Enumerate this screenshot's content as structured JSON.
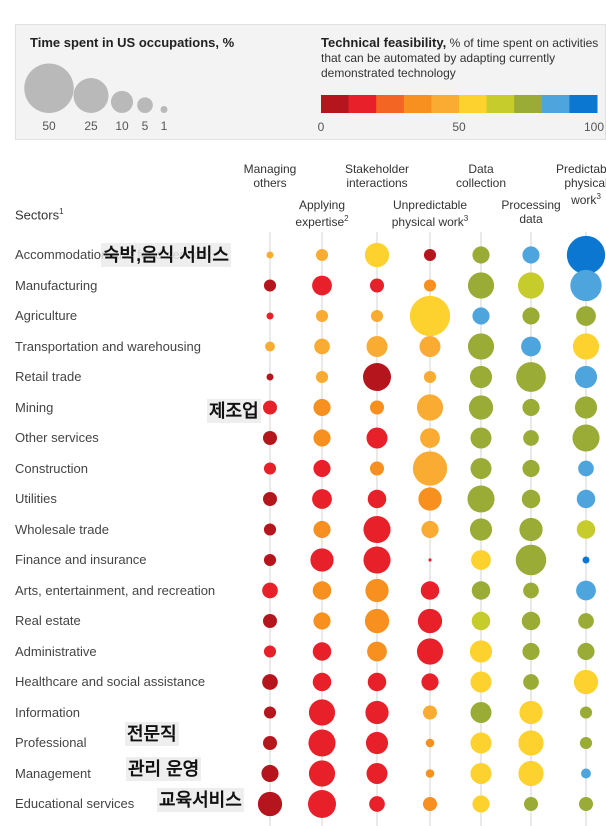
{
  "legend": {
    "size_title": "Time spent in US occupations, %",
    "size_values": [
      "50",
      "25",
      "10",
      "5",
      "1"
    ],
    "tf_title_bold": "Technical feasibility,",
    "tf_title_rest": " % of time spent on activities that can be automated by adapting currently demonstrated technology",
    "scale_labels": [
      "0",
      "50",
      "100"
    ],
    "scale_colors": [
      "#b5161e",
      "#e8202a",
      "#f26522",
      "#f7901e",
      "#f9ab32",
      "#fdd12e",
      "#c6cc2c",
      "#9aab36",
      "#4ea5dd",
      "#0b77d1"
    ]
  },
  "sectors_heading": "Sectors",
  "sectors_heading_sup": "1",
  "columns": [
    {
      "lines": [
        "Managing",
        "others"
      ],
      "sup": ""
    },
    {
      "lines": [
        "Applying",
        "expertise"
      ],
      "sup": "2"
    },
    {
      "lines": [
        "Stakeholder",
        "interactions"
      ],
      "sup": ""
    },
    {
      "lines": [
        "Unpredictable",
        "physical work"
      ],
      "sup": "3"
    },
    {
      "lines": [
        "Data",
        "collection"
      ],
      "sup": ""
    },
    {
      "lines": [
        "Processing",
        "data"
      ],
      "sup": ""
    },
    {
      "lines": [
        "Predictable",
        "physical",
        "work"
      ],
      "sup": "3"
    }
  ],
  "chart_data": {
    "type": "scatter",
    "title": "",
    "size_legend_title": "Time spent in US occupations, %",
    "color_legend_title": "Technical feasibility, % of time spent on activities that can be automated by adapting currently demonstrated technology",
    "color_scale_range": [
      0,
      100
    ],
    "columns": [
      "Managing others",
      "Applying expertise",
      "Stakeholder interactions",
      "Unpredictable physical work",
      "Data collection",
      "Processing data",
      "Predictable physical work"
    ],
    "rows": [
      {
        "sector": "Accommodation and food service",
        "size": [
          1,
          3,
          12,
          3,
          6,
          6,
          30
        ],
        "feasibility": [
          40,
          45,
          55,
          5,
          75,
          85,
          95
        ]
      },
      {
        "sector": "Manufacturing",
        "size": [
          3,
          8,
          4,
          3,
          14,
          14,
          20
        ],
        "feasibility": [
          5,
          15,
          15,
          35,
          75,
          65,
          85
        ]
      },
      {
        "sector": "Agriculture",
        "size": [
          1,
          3,
          3,
          33,
          6,
          6,
          8
        ],
        "feasibility": [
          10,
          40,
          40,
          55,
          85,
          75,
          75
        ]
      },
      {
        "sector": "Transportation and warehousing",
        "size": [
          2,
          5,
          9,
          9,
          14,
          8,
          14
        ],
        "feasibility": [
          40,
          40,
          45,
          45,
          75,
          85,
          55
        ]
      },
      {
        "sector": "Retail trade",
        "size": [
          1,
          3,
          16,
          3,
          10,
          18,
          10
        ],
        "feasibility": [
          5,
          45,
          5,
          40,
          75,
          75,
          85
        ]
      },
      {
        "sector": "Mining",
        "size": [
          4,
          6,
          4,
          14,
          12,
          6,
          10
        ],
        "feasibility": [
          15,
          35,
          35,
          45,
          75,
          70,
          75
        ]
      },
      {
        "sector": "Other services",
        "size": [
          4,
          6,
          9,
          8,
          9,
          5,
          15
        ],
        "feasibility": [
          5,
          35,
          15,
          40,
          75,
          70,
          75
        ]
      },
      {
        "sector": "Construction",
        "size": [
          3,
          6,
          4,
          24,
          9,
          6,
          5
        ],
        "feasibility": [
          15,
          15,
          35,
          45,
          75,
          75,
          85
        ]
      },
      {
        "sector": "Utilities",
        "size": [
          4,
          8,
          7,
          11,
          15,
          7,
          7
        ],
        "feasibility": [
          5,
          15,
          15,
          35,
          75,
          70,
          85
        ]
      },
      {
        "sector": "Wholesale trade",
        "size": [
          3,
          6,
          15,
          6,
          10,
          11,
          7
        ],
        "feasibility": [
          5,
          35,
          15,
          40,
          75,
          70,
          65
        ]
      },
      {
        "sector": "Finance and insurance",
        "size": [
          3,
          11,
          15,
          0.2,
          8,
          19,
          1
        ],
        "feasibility": [
          5,
          15,
          15,
          15,
          55,
          75,
          95
        ]
      },
      {
        "sector": "Arts, entertainment, and recreation",
        "size": [
          5,
          7,
          11,
          7,
          7,
          5,
          8
        ],
        "feasibility": [
          15,
          35,
          35,
          15,
          70,
          75,
          85
        ]
      },
      {
        "sector": "Real estate",
        "size": [
          4,
          6,
          12,
          12,
          7,
          7,
          5
        ],
        "feasibility": [
          5,
          35,
          35,
          15,
          65,
          75,
          70
        ]
      },
      {
        "sector": "Administrative",
        "size": [
          3,
          7,
          8,
          14,
          10,
          6,
          6
        ],
        "feasibility": [
          15,
          15,
          35,
          15,
          55,
          70,
          75
        ]
      },
      {
        "sector": "Healthcare and social assistance",
        "size": [
          5,
          7,
          7,
          6,
          9,
          5,
          12
        ],
        "feasibility": [
          5,
          15,
          15,
          15,
          55,
          75,
          55
        ]
      },
      {
        "sector": "Information",
        "size": [
          3,
          14,
          11,
          4,
          9,
          11,
          3
        ],
        "feasibility": [
          5,
          15,
          15,
          40,
          70,
          55,
          75
        ]
      },
      {
        "sector": "Professional",
        "size": [
          4,
          15,
          10,
          1.5,
          9,
          13,
          3
        ],
        "feasibility": [
          5,
          15,
          15,
          35,
          55,
          55,
          75
        ]
      },
      {
        "sector": "Management",
        "size": [
          6,
          14,
          9,
          1.5,
          9,
          13,
          2
        ],
        "feasibility": [
          5,
          15,
          15,
          35,
          55,
          55,
          85
        ]
      },
      {
        "sector": "Educational services",
        "size": [
          12,
          16,
          5,
          4,
          6,
          4,
          4
        ],
        "feasibility": [
          5,
          15,
          15,
          35,
          55,
          75,
          75
        ]
      }
    ]
  },
  "annotations": [
    "숙박,음식 서비스",
    "제조업",
    "전문직",
    "관리 운영",
    "교육서비스"
  ]
}
